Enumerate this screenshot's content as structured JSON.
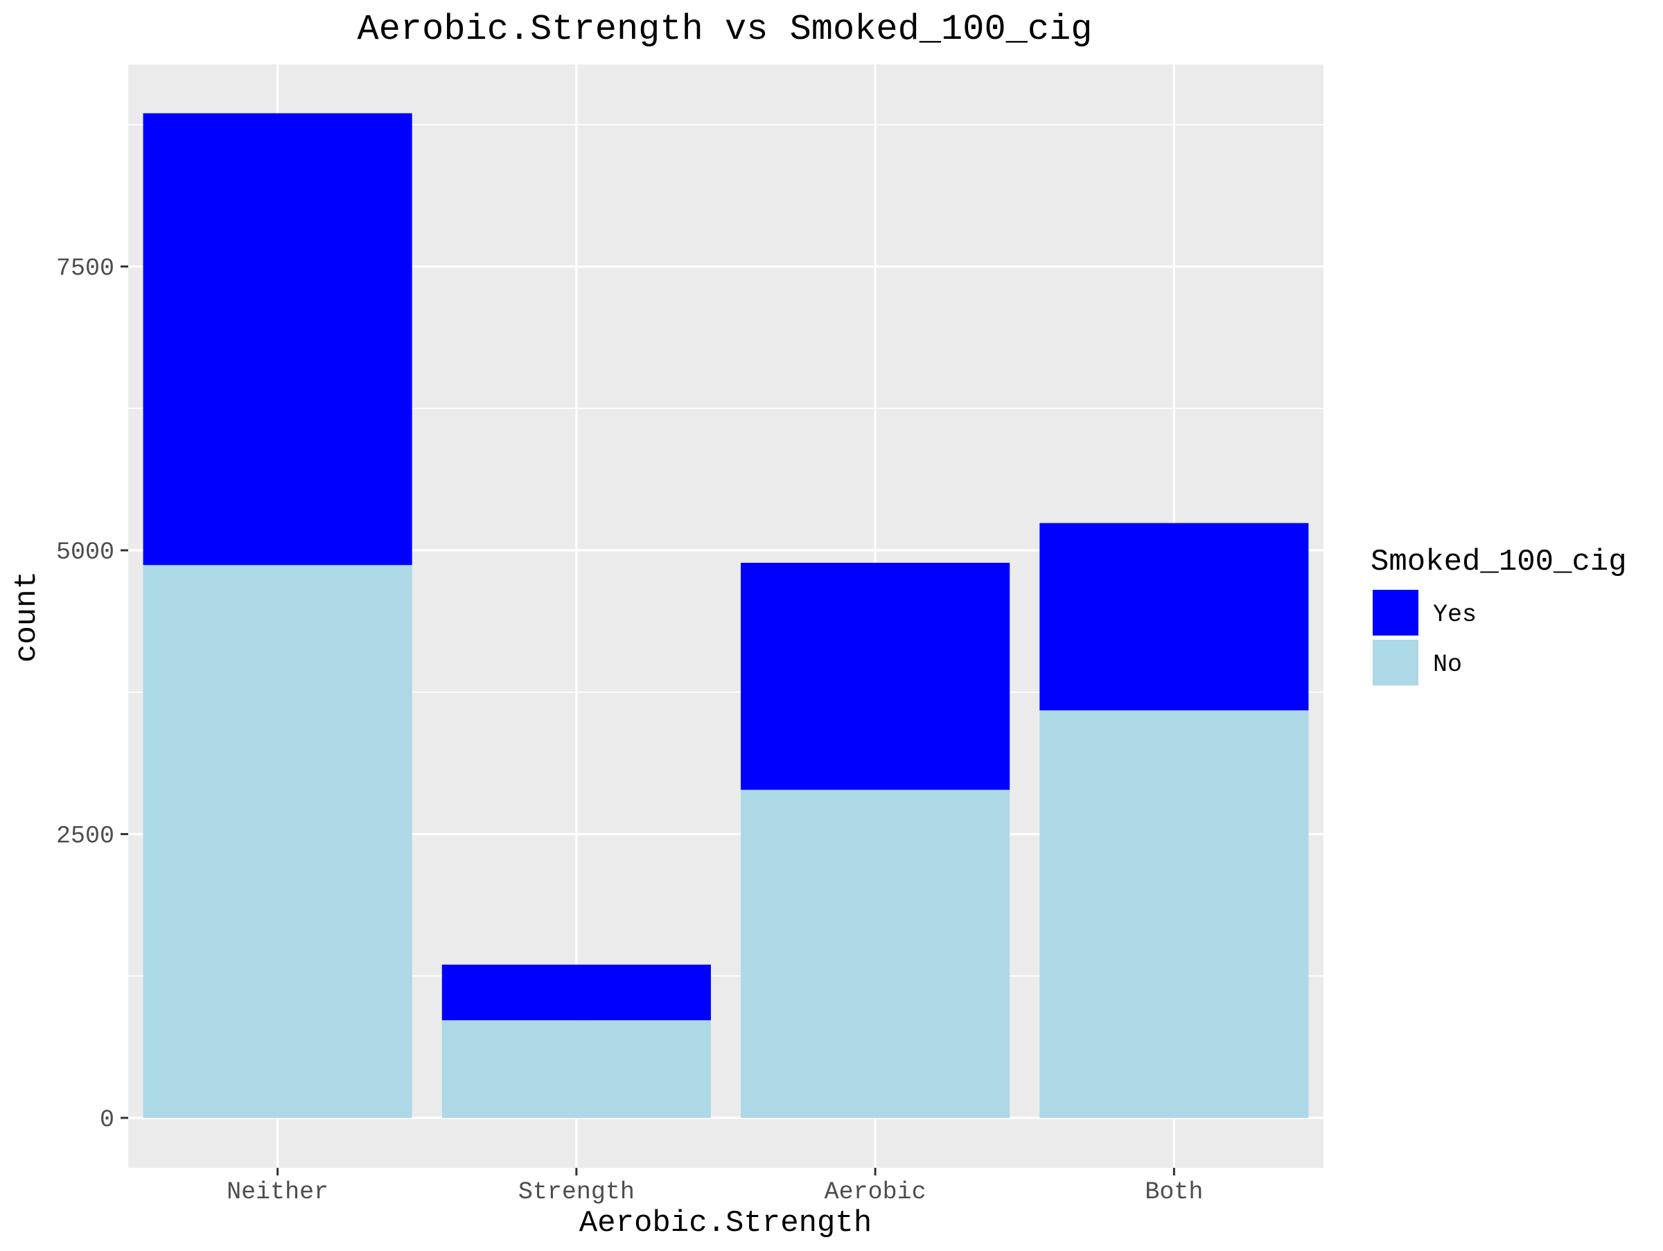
{
  "chart_data": {
    "type": "bar",
    "stacked": true,
    "title": "Aerobic.Strength vs Smoked_100_cig",
    "xlabel": "Aerobic.Strength",
    "ylabel": "count",
    "categories": [
      "Neither",
      "Strength",
      "Aerobic",
      "Both"
    ],
    "series": [
      {
        "name": "No",
        "color": "#add8e6",
        "values": [
          4870,
          860,
          2890,
          3590
        ]
      },
      {
        "name": "Yes",
        "color": "#0000ff",
        "values": [
          3980,
          490,
          2000,
          1650
        ]
      }
    ],
    "legend": {
      "title": "Smoked_100_cig",
      "position": "right",
      "entries": [
        {
          "label": "Yes",
          "color": "#0000ff"
        },
        {
          "label": "No",
          "color": "#add8e6"
        }
      ]
    },
    "ylim": [
      -440,
      9280
    ],
    "y_ticks": [
      0,
      2500,
      5000,
      7500
    ],
    "y_tick_labels": [
      "0",
      "2500",
      "5000",
      "7500"
    ],
    "grid": true,
    "panel_color": "#ebebeb"
  }
}
